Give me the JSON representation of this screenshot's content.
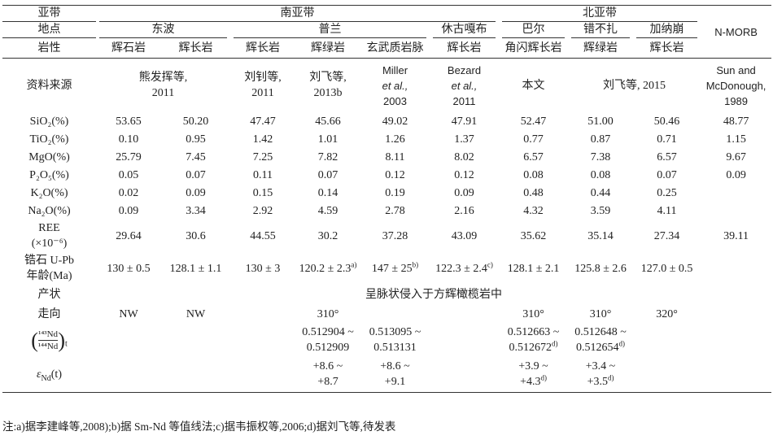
{
  "table": {
    "header": {
      "zone_label": "亚带",
      "zones": [
        "南亚带",
        "北亚带",
        "N-MORB"
      ],
      "locality_label": "地点",
      "localities": [
        "东波",
        "普兰",
        "休古嘎布",
        "巴尔",
        "错不扎",
        "加纳崩"
      ],
      "lithology_label": "岩性",
      "lithologies": [
        "辉石岩",
        "辉长岩",
        "辉长岩",
        "辉绿岩",
        "玄武质岩脉",
        "辉长岩",
        "角闪辉长岩",
        "辉绿岩",
        "辉长岩"
      ]
    },
    "source": {
      "label": "资料来源",
      "cells": [
        [
          "熊发挥等,",
          "2011"
        ],
        [
          "刘钊等,",
          "2011"
        ],
        [
          "刘飞等,",
          "2013b"
        ],
        [
          "Miller",
          "et al.,",
          "2003"
        ],
        [
          "Bezard",
          "et al.,",
          "2011"
        ],
        [
          "本文"
        ],
        [
          "刘飞等, 2015"
        ],
        [
          "Sun and",
          "McDonough,",
          "1989"
        ]
      ]
    },
    "rows": [
      {
        "label": "SiO₂(%)",
        "values": [
          "53.65",
          "50.20",
          "47.47",
          "45.66",
          "49.02",
          "47.91",
          "52.47",
          "51.00",
          "50.46",
          "48.77"
        ]
      },
      {
        "label": "TiO₂(%)",
        "values": [
          "0.10",
          "0.95",
          "1.42",
          "1.01",
          "1.26",
          "1.37",
          "0.77",
          "0.87",
          "0.71",
          "1.15"
        ]
      },
      {
        "label": "MgO(%)",
        "values": [
          "25.79",
          "7.45",
          "7.25",
          "7.82",
          "8.11",
          "8.02",
          "6.57",
          "7.38",
          "6.57",
          "9.67"
        ]
      },
      {
        "label": "P₂O₅(%)",
        "values": [
          "0.05",
          "0.07",
          "0.11",
          "0.07",
          "0.12",
          "0.12",
          "0.08",
          "0.08",
          "0.07",
          "0.09"
        ]
      },
      {
        "label": "K₂O(%)",
        "values": [
          "0.02",
          "0.09",
          "0.15",
          "0.14",
          "0.19",
          "0.09",
          "0.48",
          "0.44",
          "0.25",
          null
        ]
      },
      {
        "label": "Na₂O(%)",
        "values": [
          "0.09",
          "3.34",
          "2.92",
          "4.59",
          "2.78",
          "2.16",
          "4.32",
          "3.59",
          "4.11",
          null
        ]
      },
      {
        "label": [
          "REE",
          "(×10⁻⁶)"
        ],
        "values": [
          "29.64",
          "30.6",
          "44.55",
          "30.2",
          "37.28",
          "43.09",
          "35.62",
          "35.14",
          "27.34",
          "39.11"
        ]
      },
      {
        "label": [
          "锆石 U-Pb",
          "年龄(Ma)"
        ],
        "values": [
          "130 ± 0.5",
          "128.1 ± 1.1",
          "130 ± 3",
          {
            "lines": [
              "120.2 ± 2.3"
            ],
            "note": "a)"
          },
          {
            "lines": [
              "147 ± 25"
            ],
            "note": "b)"
          },
          {
            "lines": [
              "122.3 ± 2.4"
            ],
            "note": "c)"
          },
          "128.1 ± 2.1",
          "125.8 ± 2.6",
          "127.0 ± 0.5",
          null
        ]
      },
      {
        "label": "走向",
        "values": [
          "NW",
          "NW",
          null,
          "310°",
          null,
          null,
          "310°",
          "310°",
          "320°",
          null
        ]
      },
      {
        "label": {
          "open": "(",
          "numerator": "¹⁴³Nd",
          "denominator": "¹⁴⁴Nd",
          "close": ")",
          "subscript": "t"
        },
        "values": [
          null,
          null,
          null,
          {
            "lines": [
              "0.512904 ~",
              "0.512909"
            ]
          },
          {
            "lines": [
              "0.513095 ~",
              "0.513131"
            ]
          },
          null,
          {
            "lines": [
              "0.512663 ~",
              "0.512672"
            ],
            "note": "d)"
          },
          {
            "lines": [
              "0.512648 ~",
              "0.512654"
            ],
            "note": "d)"
          },
          null,
          null
        ]
      },
      {
        "label": {
          "symbol": "ε",
          "subscript": "Nd",
          "suffix": "(t)"
        },
        "values": [
          null,
          null,
          null,
          {
            "lines": [
              "+8.6 ~",
              "+8.7"
            ]
          },
          {
            "lines": [
              "+8.6 ~",
              "+9.1"
            ]
          },
          null,
          {
            "lines": [
              "+3.9 ~",
              "+4.3"
            ],
            "note": "d)"
          },
          {
            "lines": [
              "+3.4 ~",
              "+3.5"
            ],
            "note": "d)"
          },
          null,
          null
        ]
      }
    ],
    "occurrence": {
      "label": "产状",
      "text": "呈脉状侵入于方辉橄榄岩中"
    },
    "footnote": "注:a)据李建峰等,2008);b)据 Sm-Nd 等值线法;c)据韦振权等,2006;d)据刘飞等,待发表"
  }
}
